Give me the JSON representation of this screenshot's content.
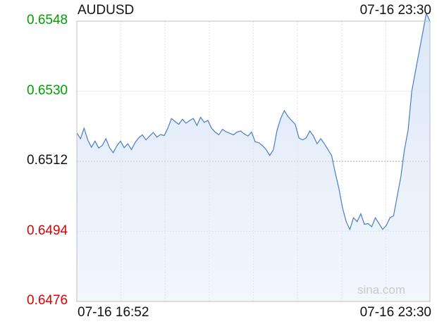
{
  "chart_data": {
    "type": "area",
    "title": "AUDUSD",
    "timestamp": "07-16 23:30",
    "x_start_label": "07-16 16:52",
    "x_end_label": "07-16 23:30",
    "yticks": [
      {
        "label": "0.6548",
        "value": 0.6548,
        "color": "#00a000"
      },
      {
        "label": "0.6530",
        "value": 0.653,
        "color": "#00a000"
      },
      {
        "label": "0.6512",
        "value": 0.6512,
        "color": "#111111"
      },
      {
        "label": "0.6494",
        "value": 0.6494,
        "color": "#dd0000"
      },
      {
        "label": "0.6476",
        "value": 0.6476,
        "color": "#dd0000"
      }
    ],
    "ylim": [
      0.6476,
      0.6548
    ],
    "reference_value": 0.6512,
    "grid": true,
    "line_color": "#4a7cc7",
    "fill_color": "#dce8f8",
    "values": [
      0.65193,
      0.65178,
      0.65205,
      0.65175,
      0.65156,
      0.65172,
      0.65154,
      0.65161,
      0.65178,
      0.65155,
      0.65142,
      0.6516,
      0.65172,
      0.65155,
      0.65165,
      0.6515,
      0.65168,
      0.6518,
      0.65188,
      0.65175,
      0.65185,
      0.65194,
      0.65182,
      0.65189,
      0.65186,
      0.65205,
      0.6523,
      0.65222,
      0.65215,
      0.65228,
      0.65218,
      0.65225,
      0.6523,
      0.65212,
      0.65233,
      0.6522,
      0.65225,
      0.65205,
      0.65195,
      0.65188,
      0.65202,
      0.65196,
      0.65192,
      0.65188,
      0.65195,
      0.65198,
      0.6519,
      0.65185,
      0.65195,
      0.6517,
      0.65168,
      0.6516,
      0.6515,
      0.65135,
      0.6515,
      0.652,
      0.6523,
      0.6525,
      0.65235,
      0.65225,
      0.65215,
      0.6518,
      0.65175,
      0.6518,
      0.65198,
      0.65185,
      0.65165,
      0.65178,
      0.65165,
      0.6515,
      0.65135,
      0.6509,
      0.6505,
      0.65,
      0.64965,
      0.64945,
      0.64975,
      0.64965,
      0.64985,
      0.64958,
      0.6496,
      0.64952,
      0.64975,
      0.6496,
      0.64945,
      0.64955,
      0.64975,
      0.6498,
      0.6503,
      0.6508,
      0.6515,
      0.652,
      0.653,
      0.6535,
      0.654,
      0.6545,
      0.655,
      0.6548
    ]
  }
}
